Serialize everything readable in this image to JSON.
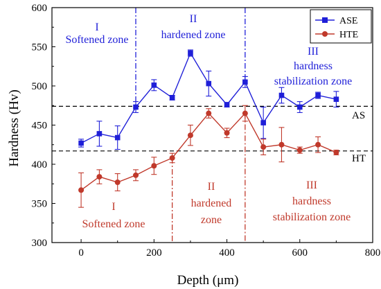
{
  "chart_data": {
    "type": "line",
    "title": "",
    "xlabel": "Depth (μm)",
    "ylabel": "Hardness (Hv)",
    "xlim": [
      -80,
      800
    ],
    "ylim": [
      300,
      600
    ],
    "xticks": [
      0,
      200,
      400,
      600,
      800
    ],
    "yticks": [
      300,
      350,
      400,
      450,
      500,
      550,
      600
    ],
    "grid": false,
    "legend_position": "top-right",
    "series": [
      {
        "name": "ASE",
        "color": "#1f1fd8",
        "marker": "square",
        "x": [
          0,
          50,
          100,
          150,
          200,
          250,
          300,
          350,
          400,
          450,
          500,
          550,
          600,
          650,
          700
        ],
        "y": [
          427,
          439,
          434,
          473,
          501,
          485,
          542,
          503,
          476,
          505,
          453,
          488,
          473,
          488,
          483
        ],
        "err": [
          5,
          16,
          15,
          7,
          7,
          3,
          4,
          16,
          3,
          7,
          20,
          10,
          7,
          4,
          10
        ]
      },
      {
        "name": "HTE",
        "color": "#c0392b",
        "marker": "circle",
        "x": [
          0,
          50,
          100,
          150,
          200,
          250,
          300,
          350,
          400,
          450,
          500,
          550,
          600,
          650,
          700
        ],
        "y": [
          367,
          384,
          377,
          386,
          398,
          408,
          437,
          465,
          440,
          465,
          422,
          425,
          418,
          425,
          415
        ],
        "err": [
          22,
          9,
          11,
          7,
          11,
          6,
          13,
          6,
          6,
          10,
          10,
          22,
          4,
          10,
          3
        ]
      }
    ],
    "reference_lines": [
      {
        "label": "AS",
        "y": 474
      },
      {
        "label": "HT",
        "y": 417
      }
    ],
    "zone_dividers": [
      {
        "series": "ASE",
        "x": 150,
        "color": "#1f1fd8"
      },
      {
        "series": "ASE",
        "x": 450,
        "color": "#1f1fd8"
      },
      {
        "series": "HTE",
        "x": 250,
        "color": "#c0392b"
      },
      {
        "series": "HTE",
        "x": 450,
        "color": "#c0392b"
      }
    ],
    "annotations": {
      "upper": {
        "color": "#1f1fd8",
        "zone1": {
          "numeral": "I",
          "text": "Softened zone"
        },
        "zone2": {
          "numeral": "II",
          "text": "hardened zone"
        },
        "zone3": {
          "numeral": "III",
          "line1": "hardness",
          "line2": "stabilization zone"
        }
      },
      "lower": {
        "color": "#c0392b",
        "zone1": {
          "numeral": "I",
          "text": "Softened zone"
        },
        "zone2": {
          "numeral": "II",
          "line1": "hardened",
          "line2": "zone"
        },
        "zone3": {
          "numeral": "III",
          "line1": "hardness",
          "line2": "stabilization zone"
        }
      }
    }
  }
}
